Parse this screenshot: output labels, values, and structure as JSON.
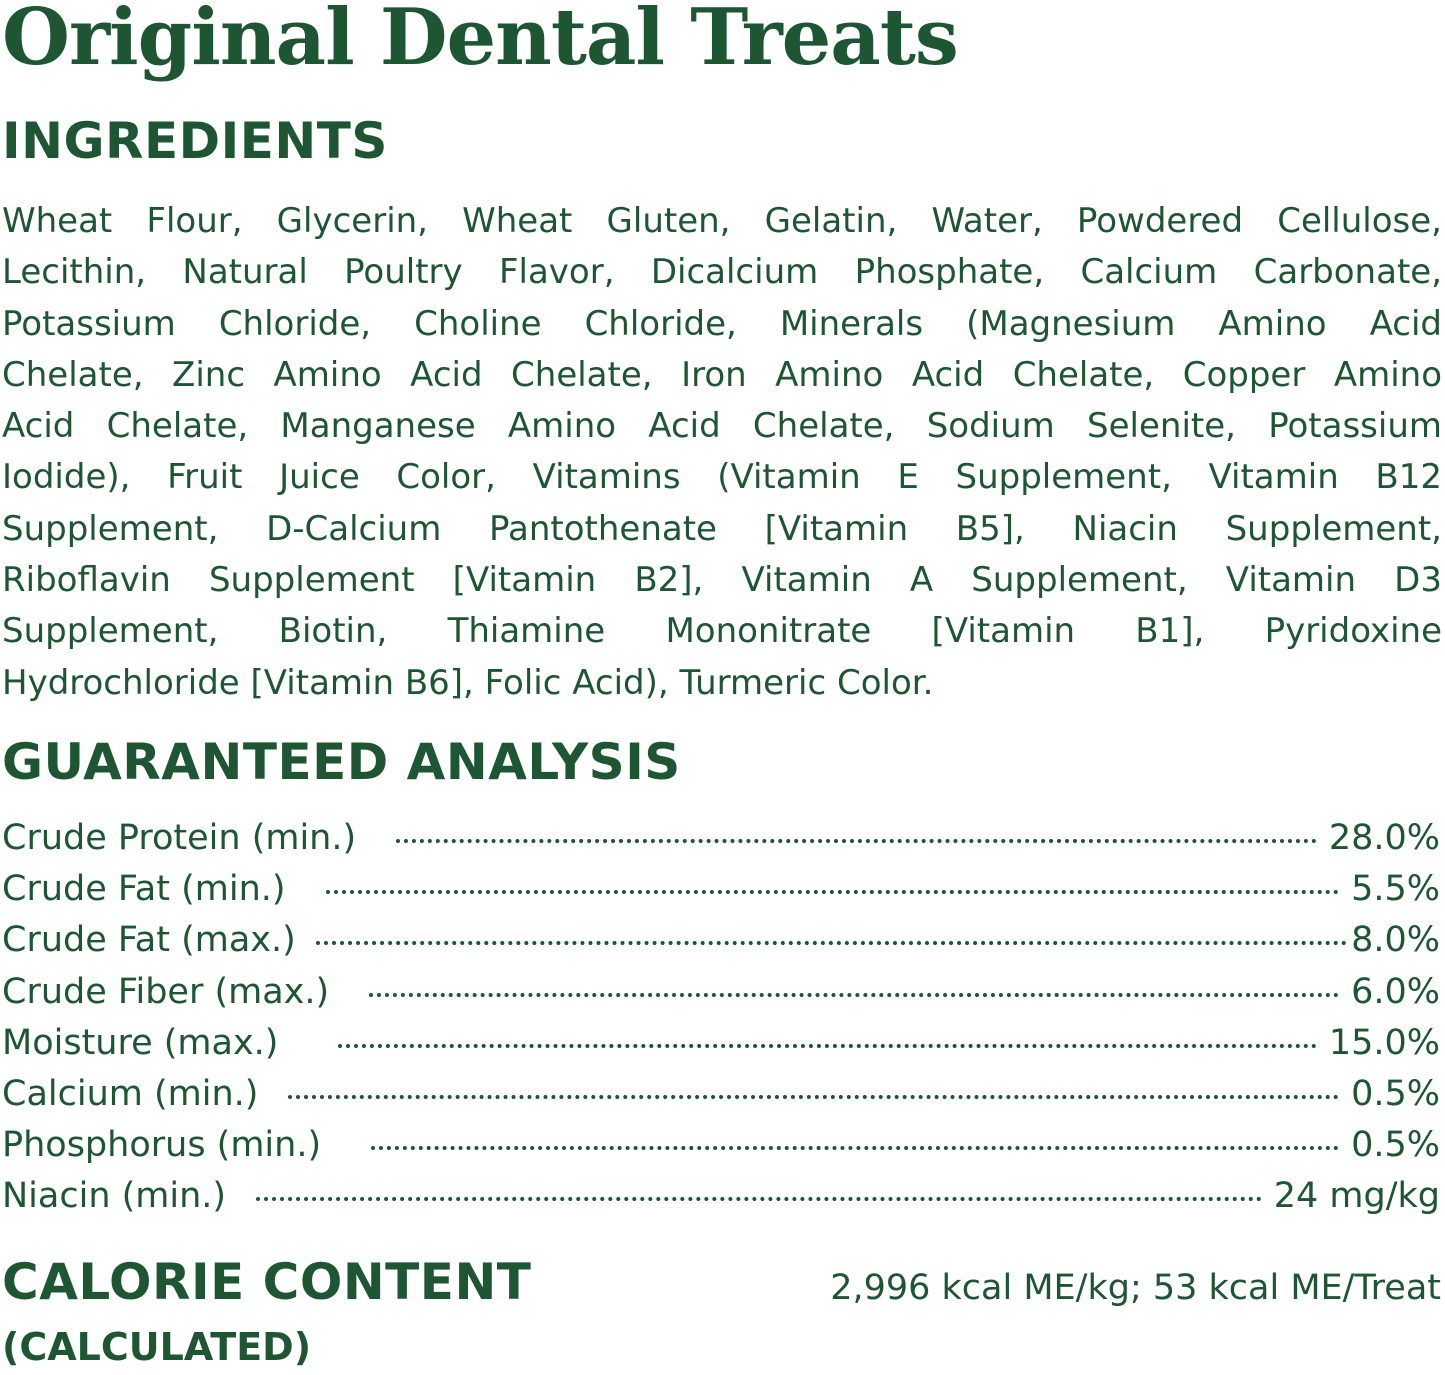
{
  "title": "Original Dental Treats",
  "ingredients": {
    "heading": "INGREDIENTS",
    "lines": [
      "Wheat Flour, Glycerin, Wheat Gluten, Gelatin, Water, Powdered Cellulose,",
      "Lecithin, Natural Poultry Flavor, Dicalcium Phosphate, Calcium Carbonate,",
      "Potassium Chloride, Choline Chloride, Minerals (Magnesium Amino Acid",
      "Chelate, Zinc Amino Acid Chelate, Iron Amino Acid Chelate, Copper Amino",
      "Acid Chelate, Manganese Amino Acid Chelate, Sodium Selenite, Potassium",
      "Iodide), Fruit Juice Color, Vitamins (Vitamin E Supplement, Vitamin B12",
      "Supplement, D-Calcium Pantothenate [Vitamin B5], Niacin Supplement,",
      "Riboflavin Supplement [Vitamin B2], Vitamin A Supplement, Vitamin D3",
      "Supplement, Biotin, Thiamine Mononitrate [Vitamin B1], Pyridoxine",
      "Hydrochloride [Vitamin B6], Folic Acid), Turmeric Color."
    ]
  },
  "analysis": {
    "heading": "GUARANTEED ANALYSIS",
    "rows": [
      {
        "label": "Crude Protein (min.)",
        "value": "28.0%"
      },
      {
        "label": "Crude Fat (min.)",
        "value": "5.5%"
      },
      {
        "label": "Crude Fat (max.)",
        "value": "8.0%"
      },
      {
        "label": "Crude Fiber (max.)",
        "value": "6.0%"
      },
      {
        "label": "Moisture (max.)",
        "value": "15.0%"
      },
      {
        "label": "Calcium (min.)",
        "value": "0.5%"
      },
      {
        "label": "Phosphorus (min.)",
        "value": "0.5%"
      },
      {
        "label": "Niacin (min.)",
        "value": "24 mg/kg"
      }
    ]
  },
  "calorie": {
    "heading": "CALORIE CONTENT",
    "subheading": "(CALCULATED)",
    "value": "2,996 kcal ME/kg; 53 kcal ME/Treat"
  },
  "colors": {
    "text": "#1e5634",
    "background": "#ffffff"
  }
}
